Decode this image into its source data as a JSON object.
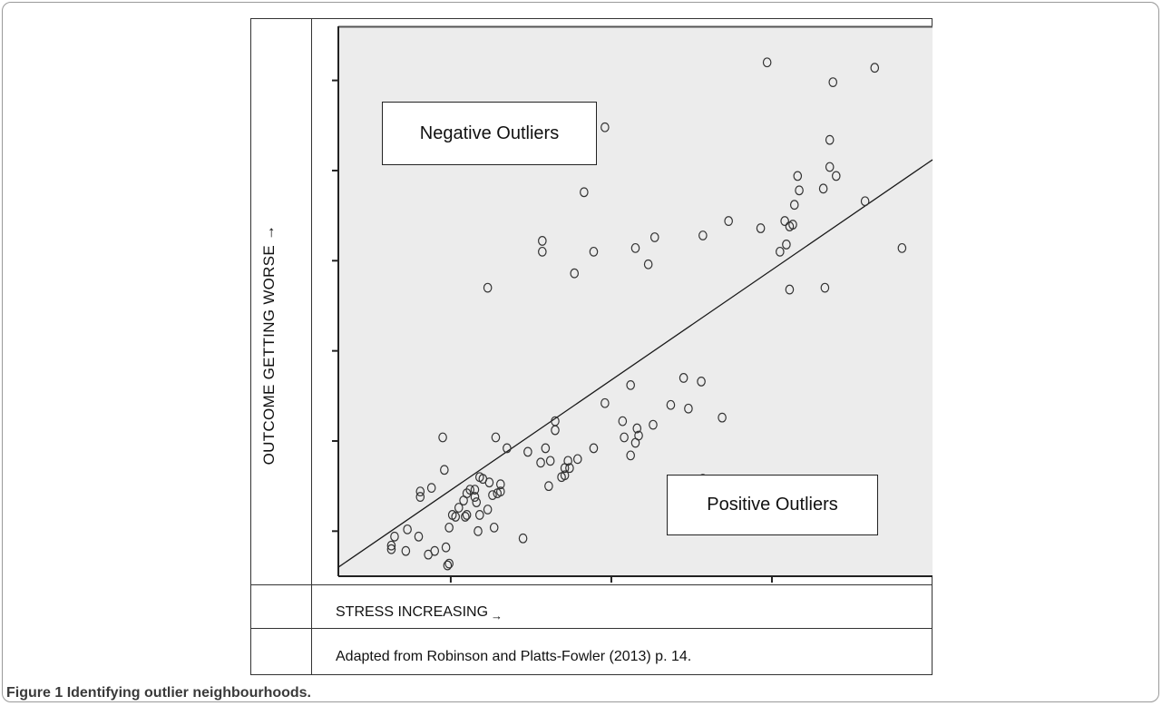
{
  "chart_data": {
    "type": "scatter",
    "xlabel": "STRESS INCREASING",
    "xlabel_arrow": "→",
    "ylabel": "OUTCOME GETTING WORSE →",
    "xlim": [
      -2.0,
      35.0
    ],
    "ylim": [
      -2.5,
      28.0
    ],
    "xticks": [
      5,
      15,
      25
    ],
    "yticks": [
      0,
      5,
      10,
      15,
      20,
      25
    ],
    "grid": false,
    "annotations": [
      "Negative Outliers",
      "Positive Outliers"
    ],
    "trendline": {
      "from": [
        -2.0,
        -2.0
      ],
      "to": [
        35.0,
        20.6
      ]
    },
    "points": [
      [
        1.3,
        -1.0
      ],
      [
        1.3,
        -0.8
      ],
      [
        1.5,
        -0.3
      ],
      [
        2.2,
        -1.1
      ],
      [
        2.3,
        0.1
      ],
      [
        3.0,
        -0.3
      ],
      [
        3.1,
        1.9
      ],
      [
        3.1,
        2.2
      ],
      [
        3.6,
        -1.3
      ],
      [
        3.8,
        2.4
      ],
      [
        4.0,
        -1.1
      ],
      [
        4.7,
        -0.9
      ],
      [
        4.5,
        5.2
      ],
      [
        4.6,
        3.4
      ],
      [
        4.8,
        -1.9
      ],
      [
        4.9,
        -1.8
      ],
      [
        4.9,
        0.2
      ],
      [
        5.1,
        0.9
      ],
      [
        5.3,
        0.8
      ],
      [
        5.5,
        1.3
      ],
      [
        5.8,
        1.7
      ],
      [
        5.9,
        0.8
      ],
      [
        6.0,
        0.9
      ],
      [
        6.0,
        2.1
      ],
      [
        6.2,
        2.3
      ],
      [
        6.5,
        2.3
      ],
      [
        6.5,
        1.9
      ],
      [
        6.6,
        1.6
      ],
      [
        6.8,
        0.9
      ],
      [
        6.7,
        0.0
      ],
      [
        6.8,
        3.0
      ],
      [
        7.0,
        2.9
      ],
      [
        7.3,
        1.2
      ],
      [
        7.4,
        2.7
      ],
      [
        7.3,
        13.5
      ],
      [
        7.6,
        2.0
      ],
      [
        7.7,
        0.2
      ],
      [
        7.8,
        5.2
      ],
      [
        7.9,
        2.1
      ],
      [
        8.1,
        2.2
      ],
      [
        8.1,
        2.6
      ],
      [
        8.5,
        4.6
      ],
      [
        9.5,
        -0.4
      ],
      [
        9.8,
        4.4
      ],
      [
        10.6,
        3.8
      ],
      [
        10.7,
        15.5
      ],
      [
        10.7,
        16.1
      ],
      [
        10.9,
        4.6
      ],
      [
        11.1,
        2.5
      ],
      [
        11.2,
        3.9
      ],
      [
        11.5,
        6.1
      ],
      [
        11.5,
        5.6
      ],
      [
        11.9,
        3.0
      ],
      [
        12.1,
        3.1
      ],
      [
        12.1,
        3.5
      ],
      [
        12.3,
        3.9
      ],
      [
        12.4,
        3.5
      ],
      [
        12.7,
        14.3
      ],
      [
        12.9,
        4.0
      ],
      [
        13.3,
        18.8
      ],
      [
        13.9,
        4.6
      ],
      [
        13.9,
        15.5
      ],
      [
        14.6,
        22.4
      ],
      [
        14.6,
        7.1
      ],
      [
        15.7,
        6.1
      ],
      [
        15.8,
        5.2
      ],
      [
        16.2,
        8.1
      ],
      [
        16.2,
        4.2
      ],
      [
        16.5,
        15.7
      ],
      [
        16.5,
        4.9
      ],
      [
        16.6,
        5.7
      ],
      [
        16.7,
        5.3
      ],
      [
        17.3,
        14.8
      ],
      [
        17.6,
        5.9
      ],
      [
        17.7,
        16.3
      ],
      [
        18.7,
        7.0
      ],
      [
        19.5,
        8.5
      ],
      [
        19.8,
        6.8
      ],
      [
        20.6,
        8.3
      ],
      [
        20.7,
        2.9
      ],
      [
        20.7,
        16.4
      ],
      [
        21.9,
        6.3
      ],
      [
        22.3,
        17.2
      ],
      [
        24.3,
        16.8
      ],
      [
        24.7,
        26.0
      ],
      [
        25.5,
        15.5
      ],
      [
        25.8,
        17.2
      ],
      [
        25.9,
        15.9
      ],
      [
        26.1,
        13.4
      ],
      [
        26.1,
        16.9
      ],
      [
        26.3,
        17.0
      ],
      [
        26.4,
        18.1
      ],
      [
        26.6,
        19.7
      ],
      [
        26.7,
        18.9
      ],
      [
        28.2,
        19.0
      ],
      [
        28.3,
        13.5
      ],
      [
        28.6,
        20.2
      ],
      [
        28.6,
        21.7
      ],
      [
        28.8,
        24.9
      ],
      [
        29.0,
        19.7
      ],
      [
        30.8,
        18.3
      ],
      [
        31.4,
        25.7
      ],
      [
        33.1,
        15.7
      ]
    ]
  },
  "annotations_text": {
    "negative": "Negative Outliers",
    "positive": "Positive Outliers"
  },
  "source_note": "Adapted from Robinson and Platts-Fowler (2013) p. 14.",
  "caption": {
    "label": "Figure 1",
    "text": "Identifying outlier neighbourhoods."
  },
  "colors": {
    "plot_background": "#ececec",
    "marker_stroke": "#333333",
    "axis": "#222222",
    "table_border": "#333333"
  }
}
